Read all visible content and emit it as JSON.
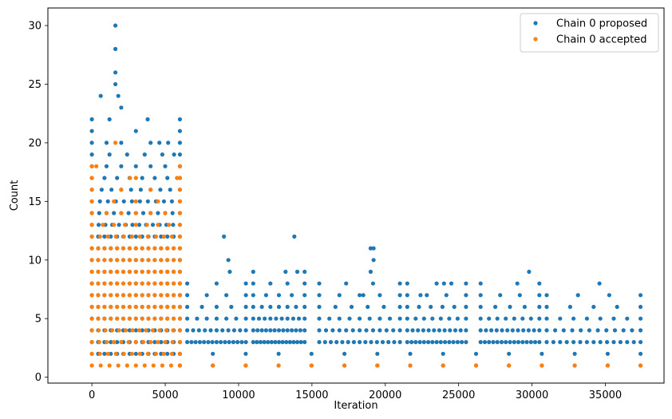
{
  "chart_data": {
    "type": "scatter",
    "xlabel": "Iteration",
    "ylabel": "Count",
    "xlim": [
      -3000,
      39000
    ],
    "ylim": [
      -0.5,
      31.5
    ],
    "xticks": [
      0,
      5000,
      10000,
      15000,
      20000,
      25000,
      30000,
      35000
    ],
    "yticks": [
      0,
      5,
      10,
      15,
      20,
      25,
      30
    ],
    "grid": false,
    "legend": "top-right",
    "series": [
      {
        "name": "Chain 0 proposed",
        "color": "#1f77b4",
        "clusters": [
          {
            "x": [
              0,
              6000
            ],
            "counts": [
              [
                2,
                15
              ],
              [
                3,
                15
              ],
              [
                4,
                15
              ],
              [
                5,
                15
              ],
              [
                6,
                15
              ],
              [
                7,
                15
              ],
              [
                8,
                15
              ],
              [
                9,
                15
              ],
              [
                10,
                15
              ],
              [
                11,
                15
              ],
              [
                12,
                15
              ],
              [
                13,
                14
              ],
              [
                14,
                13
              ],
              [
                15,
                12
              ],
              [
                16,
                10
              ],
              [
                17,
                8
              ],
              [
                18,
                7
              ],
              [
                19,
                6
              ],
              [
                20,
                4
              ],
              [
                21,
                3
              ],
              [
                22,
                2
              ]
            ]
          },
          {
            "x": [
              6000,
              37400
            ],
            "counts": [
              [
                1,
                15
              ],
              [
                2,
                15
              ]
            ]
          },
          {
            "x": [
              6500,
              10500
            ],
            "counts": [
              [
                3,
                15
              ],
              [
                4,
                11
              ],
              [
                5,
                7
              ],
              [
                6,
                5
              ],
              [
                7,
                4
              ],
              [
                8,
                3
              ]
            ]
          },
          {
            "x": [
              11000,
              14500
            ],
            "counts": [
              [
                3,
                15
              ],
              [
                4,
                13
              ],
              [
                5,
                10
              ],
              [
                6,
                7
              ],
              [
                7,
                5
              ],
              [
                8,
                4
              ],
              [
                9,
                2
              ]
            ]
          },
          {
            "x": [
              15500,
              21000
            ],
            "counts": [
              [
                3,
                15
              ],
              [
                4,
                13
              ],
              [
                5,
                9
              ],
              [
                6,
                6
              ],
              [
                7,
                5
              ],
              [
                8,
                4
              ]
            ]
          },
          {
            "x": [
              21500,
              25500
            ],
            "counts": [
              [
                3,
                15
              ],
              [
                4,
                12
              ],
              [
                5,
                8
              ],
              [
                6,
                6
              ],
              [
                7,
                4
              ],
              [
                8,
                3
              ]
            ]
          },
          {
            "x": [
              26500,
              30500
            ],
            "counts": [
              [
                3,
                15
              ],
              [
                4,
                12
              ],
              [
                5,
                8
              ],
              [
                6,
                5
              ],
              [
                7,
                4
              ],
              [
                8,
                2
              ]
            ]
          },
          {
            "x": [
              31000,
              37400
            ],
            "counts": [
              [
                3,
                15
              ],
              [
                4,
                12
              ],
              [
                5,
                8
              ],
              [
                6,
                5
              ],
              [
                7,
                4
              ]
            ]
          }
        ],
        "points": [
          [
            1600,
            30
          ],
          [
            1600,
            28
          ],
          [
            1600,
            26
          ],
          [
            1600,
            25
          ],
          [
            1800,
            24
          ],
          [
            2000,
            23
          ],
          [
            600,
            24
          ],
          [
            1200,
            22
          ],
          [
            3800,
            22
          ],
          [
            1000,
            20
          ],
          [
            4600,
            20
          ],
          [
            5200,
            20
          ],
          [
            5600,
            19
          ],
          [
            9000,
            12
          ],
          [
            9300,
            10
          ],
          [
            9400,
            9
          ],
          [
            13800,
            12
          ],
          [
            13200,
            9
          ],
          [
            14000,
            9
          ],
          [
            19000,
            11
          ],
          [
            19200,
            11
          ],
          [
            19200,
            10
          ],
          [
            19000,
            9
          ],
          [
            24000,
            8
          ],
          [
            24500,
            8
          ],
          [
            29800,
            9
          ],
          [
            29000,
            8
          ],
          [
            34600,
            8
          ],
          [
            22400,
            7
          ],
          [
            18500,
            7
          ]
        ]
      },
      {
        "name": "Chain 0 accepted",
        "color": "#ff7f0e",
        "clusters": [
          {
            "x": [
              0,
              6000
            ],
            "counts": [
              [
                1,
                11
              ],
              [
                2,
                12
              ],
              [
                3,
                13
              ],
              [
                4,
                14
              ],
              [
                5,
                15
              ],
              [
                6,
                15
              ],
              [
                7,
                15
              ],
              [
                8,
                15
              ],
              [
                9,
                15
              ],
              [
                10,
                15
              ],
              [
                11,
                15
              ],
              [
                12,
                12
              ],
              [
                13,
                9
              ],
              [
                14,
                7
              ],
              [
                15,
                5
              ],
              [
                16,
                4
              ],
              [
                17,
                3
              ],
              [
                18,
                2
              ]
            ]
          },
          {
            "x": [
              6000,
              37400
            ],
            "counts": [
              [
                1,
                15
              ]
            ]
          }
        ],
        "points": [
          [
            1600,
            20
          ],
          [
            300,
            18
          ],
          [
            5800,
            17
          ],
          [
            2600,
            17
          ]
        ]
      }
    ]
  }
}
